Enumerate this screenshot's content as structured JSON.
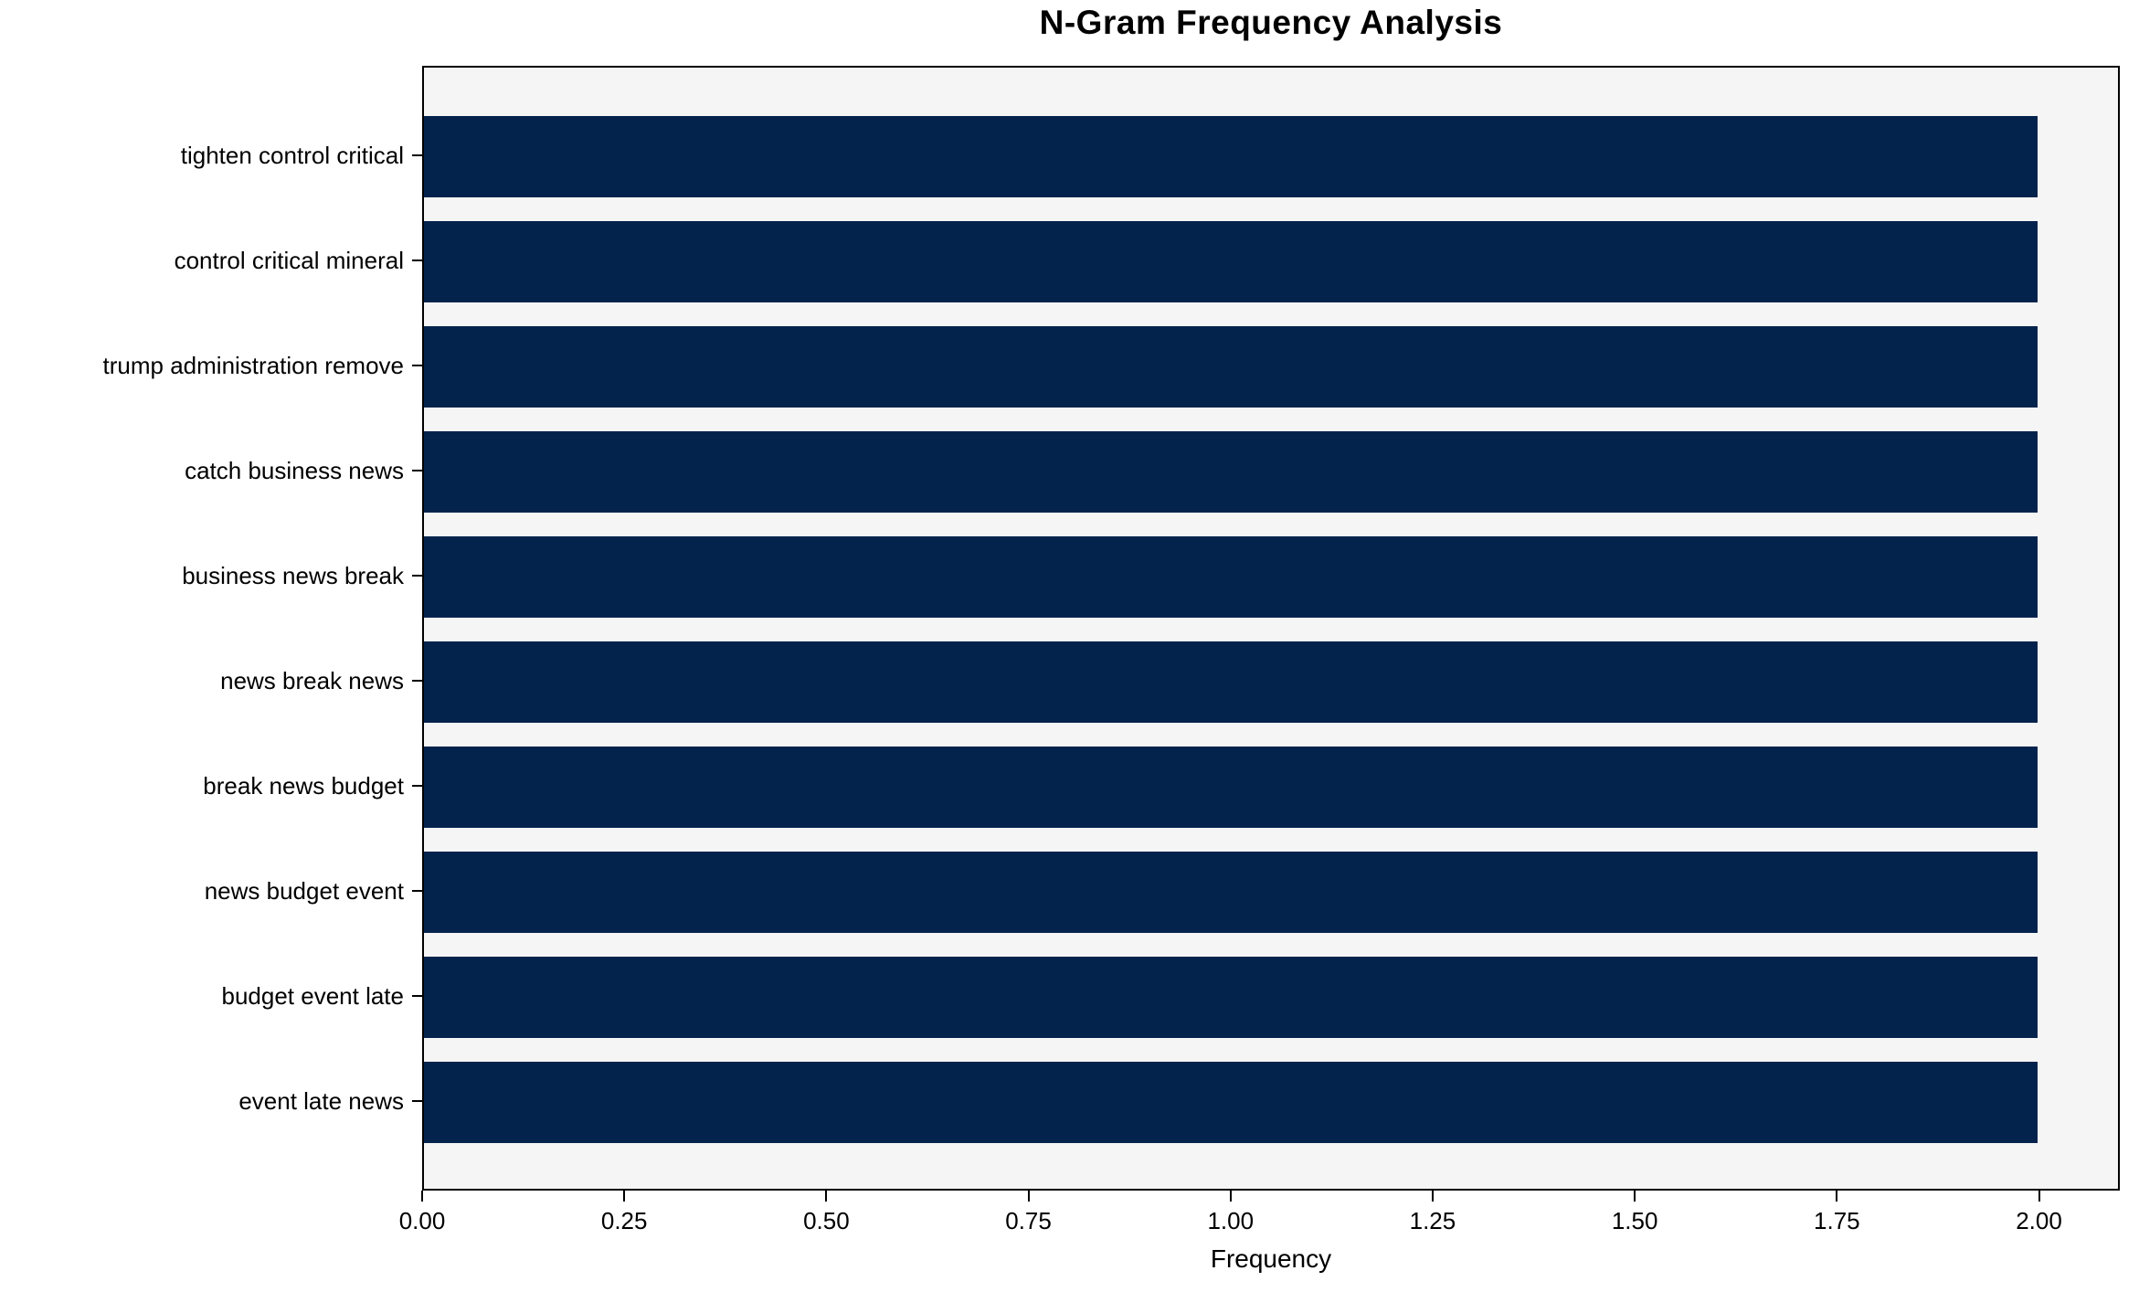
{
  "chart_data": {
    "type": "bar",
    "orientation": "horizontal",
    "title": "N-Gram Frequency Analysis",
    "xlabel": "Frequency",
    "ylabel": "",
    "categories": [
      "tighten control critical",
      "control critical mineral",
      "trump administration remove",
      "catch business news",
      "business news break",
      "news break news",
      "break news budget",
      "news budget event",
      "budget event late",
      "event late news"
    ],
    "values": [
      2,
      2,
      2,
      2,
      2,
      2,
      2,
      2,
      2,
      2
    ],
    "xlim": [
      0,
      2.1
    ],
    "xticks": [
      {
        "value": 0.0,
        "label": "0.00"
      },
      {
        "value": 0.25,
        "label": "0.25"
      },
      {
        "value": 0.5,
        "label": "0.50"
      },
      {
        "value": 0.75,
        "label": "0.75"
      },
      {
        "value": 1.0,
        "label": "1.00"
      },
      {
        "value": 1.25,
        "label": "1.25"
      },
      {
        "value": 1.5,
        "label": "1.50"
      },
      {
        "value": 1.75,
        "label": "1.75"
      },
      {
        "value": 2.0,
        "label": "2.00"
      }
    ],
    "grid": false,
    "legend": null,
    "colors": {
      "bar": "#03234d",
      "plot_background": "#f5f5f5",
      "figure_background": "#ffffff",
      "spine": "#000000",
      "text": "#000000"
    }
  }
}
